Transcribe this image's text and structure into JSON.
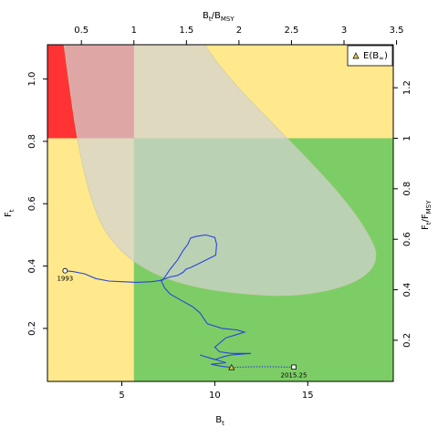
{
  "chart_data": {
    "type": "line",
    "title": "",
    "xlabel": "B",
    "xlabel_sub": "t",
    "ylabel": "F",
    "ylabel_sub": "t",
    "top_axis_label": "B",
    "top_axis_label_sub": "t",
    "top_axis_label_tail": "/B",
    "top_axis_label_tail_sub": "MSY",
    "right_axis_label": "F",
    "right_axis_label_sub": "t",
    "right_axis_label_tail": "/F",
    "right_axis_label_tail_sub": "MSY",
    "xlim": [
      1.0,
      19.6
    ],
    "ylim": [
      0.03,
      1.11
    ],
    "x_ticks": [
      5,
      10,
      15
    ],
    "x_tick_labels": [
      "5",
      "10",
      "15"
    ],
    "y_ticks": [
      0.2,
      0.4,
      0.6,
      0.8,
      1.0
    ],
    "y_tick_labels": [
      "0.2",
      "0.4",
      "0.6",
      "0.8",
      "1.0"
    ],
    "top_ticks": [
      0.5,
      1,
      1.5,
      2,
      2.5,
      3,
      3.5
    ],
    "top_tick_labels": [
      "0.5",
      "1",
      "1.5",
      "2",
      "2.5",
      "3",
      "3.5"
    ],
    "bmsy": 5.65,
    "right_ticks": [
      0.2,
      0.4,
      0.6,
      0.8,
      1.0,
      1.2
    ],
    "right_tick_labels": [
      "0.2",
      "0.4",
      "0.6",
      "0.8",
      "1",
      "1.2"
    ],
    "fmsy": 0.81,
    "regions": {
      "overfished_overfishing": "#ff3333",
      "caution": "#ffe98c",
      "healthy": "#7dcd66"
    },
    "confidence_region_color": "#d3d3d3",
    "trajectory_color": "#2a45d9",
    "series": [
      {
        "x": [
          1.95,
          2.4,
          3.0,
          3.6,
          4.3,
          5.0,
          5.8,
          6.6,
          7.2,
          7.6,
          8.0,
          8.3,
          8.55,
          8.7,
          9.0,
          9.5,
          10.0,
          10.1,
          10.05,
          9.2,
          8.7,
          8.45,
          8.3,
          8.0,
          7.6,
          7.1,
          7.3,
          7.6,
          8.2,
          8.8,
          9.2,
          9.6,
          10.4,
          11.2,
          11.6,
          10.6,
          10.2,
          10.0,
          10.25,
          10.9,
          11.95,
          10.9,
          10.5,
          10.0,
          9.2,
          10.6,
          9.8,
          10.4,
          10.9
        ],
        "y": [
          0.385,
          0.382,
          0.375,
          0.36,
          0.352,
          0.35,
          0.348,
          0.35,
          0.355,
          0.39,
          0.42,
          0.45,
          0.47,
          0.49,
          0.495,
          0.5,
          0.492,
          0.47,
          0.435,
          0.41,
          0.395,
          0.39,
          0.38,
          0.37,
          0.365,
          0.355,
          0.33,
          0.31,
          0.29,
          0.27,
          0.25,
          0.215,
          0.2,
          0.195,
          0.188,
          0.17,
          0.15,
          0.14,
          0.125,
          0.12,
          0.12,
          0.115,
          0.11,
          0.1,
          0.115,
          0.09,
          0.085,
          0.078,
          0.075
        ]
      },
      {
        "x": [
          10.9,
          11.5,
          12.2,
          13.0,
          13.8,
          14.25
        ],
        "y": [
          0.075,
          0.076,
          0.077,
          0.077,
          0.076,
          0.076
        ]
      }
    ],
    "points": [
      {
        "x": 1.95,
        "y": 0.385,
        "label": "1993",
        "shape": "circle"
      },
      {
        "x": 14.25,
        "y": 0.076,
        "label": "2015.25",
        "shape": "square"
      },
      {
        "x": 10.9,
        "y": 0.075,
        "label": "",
        "shape": "triangle"
      }
    ],
    "legend": {
      "position": "top-right",
      "entry": "E(B",
      "entry_sub": "∞",
      "entry_tail": ")",
      "marker": "triangle"
    }
  }
}
